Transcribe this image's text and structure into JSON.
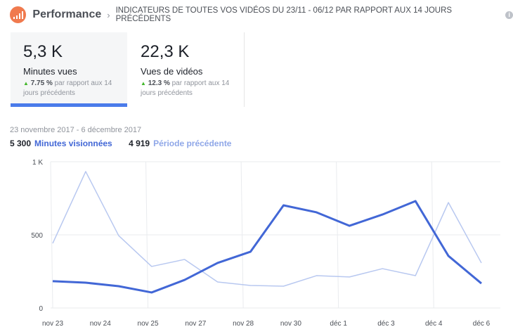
{
  "header": {
    "title": "Performance",
    "subtitle": "INDICATEURS DE TOUTES VOS VIDÉOS DU 23/11 - 06/12 PAR RAPPORT AUX 14 JOURS PRÉCÉDENTS",
    "info": "i"
  },
  "cards": [
    {
      "value": "5,3 K",
      "label": "Minutes vues",
      "change": "7.75 %",
      "change_text": "par rapport aux 14 jours précédents"
    },
    {
      "value": "22,3 K",
      "label": "Vues de vidéos",
      "change": "12.3 %",
      "change_text": "par rapport aux 14 jours précédents"
    }
  ],
  "date_range": "23 novembre 2017 - 6 décembre 2017",
  "legend": {
    "current_value": "5 300",
    "current_label": "Minutes visionnées",
    "previous_value": "4 919",
    "previous_label": "Période précédente"
  },
  "chart_data": {
    "type": "line",
    "x_tick_labels": [
      "nov 23",
      "nov 24",
      "nov 25",
      "nov 27",
      "nov 28",
      "nov 30",
      "déc 1",
      "déc 3",
      "déc 4",
      "déc 6"
    ],
    "y_tick_labels": [
      "1 K",
      "500",
      "0"
    ],
    "ylim": [
      0,
      1000
    ],
    "series": [
      {
        "name": "Minutes visionnées",
        "color": "#4267d6",
        "values": [
          183,
          173,
          149,
          106,
          192,
          308,
          385,
          702,
          654,
          562,
          639,
          731,
          356,
          168
        ]
      },
      {
        "name": "Période précédente",
        "color": "#b8c8f0",
        "values": [
          442,
          933,
          495,
          284,
          332,
          178,
          154,
          149,
          221,
          212,
          269,
          221,
          721,
          308
        ]
      }
    ]
  }
}
